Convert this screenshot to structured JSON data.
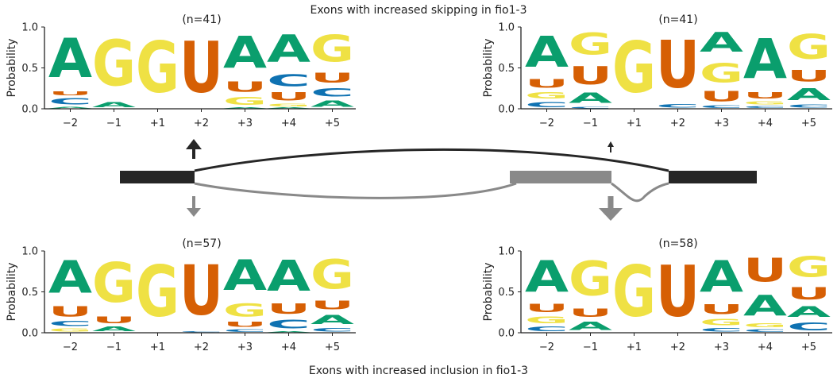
{
  "titles": {
    "top": "Exons with increased skipping in fio1-3",
    "bottom": "Exons with increased inclusion in fio1-3"
  },
  "colors": {
    "A": "#0a9e6d",
    "G": "#efe144",
    "U": "#d65f04",
    "C": "#0f72b2",
    "exon_dark": "#262626",
    "exon_gray": "#898989",
    "skip_arc": "#262626",
    "incl_arc": "#898989"
  },
  "chart_data": [
    {
      "type": "sequence_logo",
      "panel": "top-left",
      "annotation": "(n=41)",
      "ylabel": "Probability",
      "ylim": [
        0,
        1
      ],
      "yticks": [
        "0.0",
        "0.5",
        "1.0"
      ],
      "positions": [
        "−2",
        "−1",
        "+1",
        "+2",
        "+3",
        "+4",
        "+5"
      ],
      "stacks": [
        [
          [
            "A",
            0.03
          ],
          [
            "C",
            0.12
          ],
          [
            "U",
            0.08
          ],
          [
            "A",
            0.77
          ]
        ],
        [
          [
            "A",
            0.1
          ],
          [
            "G",
            0.9
          ]
        ],
        [
          [
            "G",
            1.0
          ]
        ],
        [
          [
            "U",
            1.0
          ]
        ],
        [
          [
            "A",
            0.02
          ],
          [
            "G",
            0.15
          ],
          [
            "U",
            0.2
          ],
          [
            "A",
            0.63
          ]
        ],
        [
          [
            "A",
            0.02
          ],
          [
            "G",
            0.05
          ],
          [
            "U",
            0.16
          ],
          [
            "C",
            0.23
          ],
          [
            "A",
            0.54
          ]
        ],
        [
          [
            "A",
            0.12
          ],
          [
            "C",
            0.16
          ],
          [
            "U",
            0.19
          ],
          [
            "G",
            0.53
          ]
        ]
      ]
    },
    {
      "type": "sequence_logo",
      "panel": "top-right",
      "annotation": "(n=41)",
      "ylabel": "Probability",
      "ylim": [
        0,
        1
      ],
      "yticks": [
        "0.0",
        "0.5",
        "1.0"
      ],
      "positions": [
        "−2",
        "−1",
        "+1",
        "+2",
        "+3",
        "+4",
        "+5"
      ],
      "stacks": [
        [
          [
            "C",
            0.1
          ],
          [
            "G",
            0.12
          ],
          [
            "U",
            0.17
          ],
          [
            "A",
            0.61
          ]
        ],
        [
          [
            "C",
            0.03
          ],
          [
            "A",
            0.2
          ],
          [
            "U",
            0.35
          ],
          [
            "G",
            0.42
          ]
        ],
        [
          [
            "G",
            1.0
          ]
        ],
        [
          [
            "C",
            0.07
          ],
          [
            "U",
            0.93
          ]
        ],
        [
          [
            "C",
            0.05
          ],
          [
            "U",
            0.2
          ],
          [
            "G",
            0.37
          ],
          [
            "A",
            0.38
          ]
        ],
        [
          [
            "C",
            0.04
          ],
          [
            "G",
            0.06
          ],
          [
            "U",
            0.12
          ],
          [
            "A",
            0.78
          ]
        ],
        [
          [
            "C",
            0.06
          ],
          [
            "A",
            0.23
          ],
          [
            "U",
            0.22
          ],
          [
            "G",
            0.49
          ]
        ]
      ]
    },
    {
      "type": "sequence_logo",
      "panel": "bottom-left",
      "annotation": "(n=57)",
      "ylabel": "Probability",
      "ylim": [
        0,
        1
      ],
      "yticks": [
        "0.0",
        "0.5",
        "1.0"
      ],
      "positions": [
        "−2",
        "−1",
        "+1",
        "+2",
        "+3",
        "+4",
        "+5"
      ],
      "stacks": [
        [
          [
            "G",
            0.06
          ],
          [
            "C",
            0.1
          ],
          [
            "U",
            0.2
          ],
          [
            "A",
            0.64
          ]
        ],
        [
          [
            "A",
            0.09
          ],
          [
            "U",
            0.13
          ],
          [
            "G",
            0.78
          ]
        ],
        [
          [
            "G",
            1.0
          ]
        ],
        [
          [
            "C",
            0.02
          ],
          [
            "U",
            0.98
          ]
        ],
        [
          [
            "C",
            0.05
          ],
          [
            "U",
            0.1
          ],
          [
            "G",
            0.25
          ],
          [
            "A",
            0.6
          ]
        ],
        [
          [
            "A",
            0.02
          ],
          [
            "C",
            0.17
          ],
          [
            "U",
            0.2
          ],
          [
            "A",
            0.61
          ]
        ],
        [
          [
            "C",
            0.07
          ],
          [
            "A",
            0.18
          ],
          [
            "U",
            0.17
          ],
          [
            "G",
            0.58
          ]
        ]
      ]
    },
    {
      "type": "sequence_logo",
      "panel": "bottom-right",
      "annotation": "(n=58)",
      "ylabel": "Probability",
      "ylim": [
        0,
        1
      ],
      "yticks": [
        "0.0",
        "0.5",
        "1.0"
      ],
      "positions": [
        "−2",
        "−1",
        "+1",
        "+2",
        "+3",
        "+4",
        "+5"
      ],
      "stacks": [
        [
          [
            "C",
            0.09
          ],
          [
            "G",
            0.13
          ],
          [
            "U",
            0.16
          ],
          [
            "A",
            0.62
          ]
        ],
        [
          [
            "A",
            0.16
          ],
          [
            "U",
            0.16
          ],
          [
            "G",
            0.68
          ]
        ],
        [
          [
            "G",
            1.0
          ]
        ],
        [
          [
            "U",
            1.0
          ]
        ],
        [
          [
            "C",
            0.07
          ],
          [
            "G",
            0.12
          ],
          [
            "U",
            0.19
          ],
          [
            "A",
            0.62
          ]
        ],
        [
          [
            "C",
            0.05
          ],
          [
            "G",
            0.08
          ],
          [
            "A",
            0.4
          ],
          [
            "U",
            0.47
          ]
        ],
        [
          [
            "C",
            0.15
          ],
          [
            "A",
            0.21
          ],
          [
            "U",
            0.24
          ],
          [
            "G",
            0.4
          ]
        ]
      ]
    }
  ]
}
